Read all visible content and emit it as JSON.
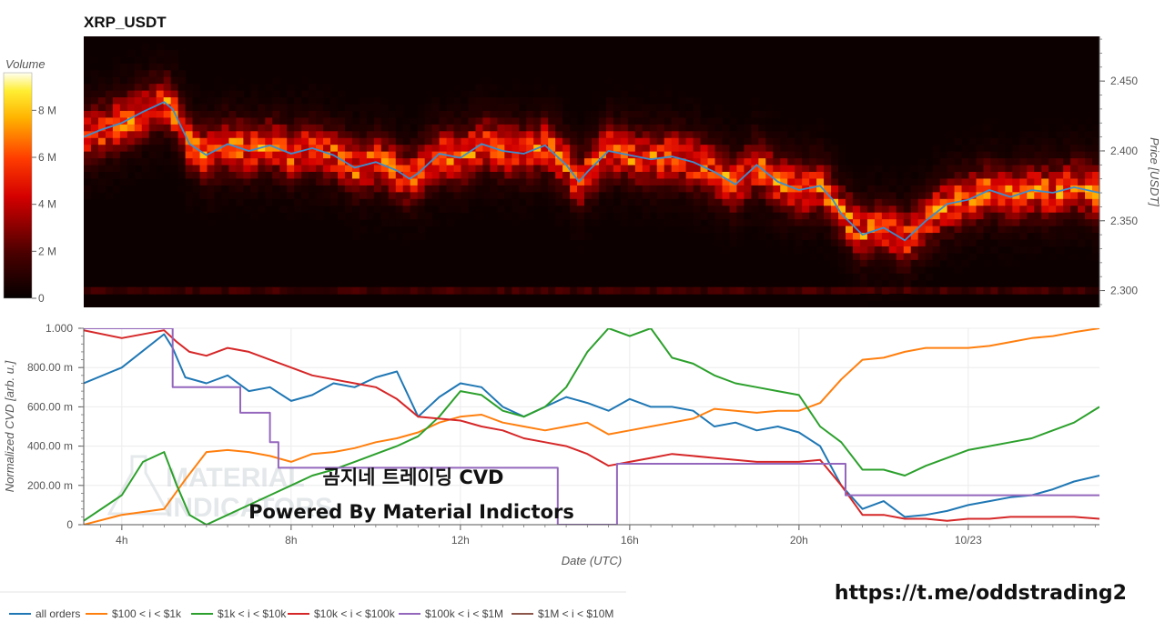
{
  "chart_data": [
    {
      "type": "heatmap",
      "title": "XRP_USDT",
      "ylabel": "Price [USDT]",
      "colorbar_label": "Volume",
      "colorbar_ticks": [
        "0",
        "2 M",
        "4 M",
        "6 M",
        "8 M"
      ],
      "colorbar_values": [
        0,
        2,
        4,
        6,
        8
      ],
      "colorbar_max": 9.6,
      "ylim": [
        2.288,
        2.482
      ],
      "y_ticks": [
        2.3,
        2.35,
        2.4,
        2.45
      ],
      "y_tick_labels": [
        "2.300",
        "2.350",
        "2.400",
        "2.450"
      ],
      "xlim": [
        3.1,
        27.1
      ],
      "price_series": {
        "x": [
          3.1,
          3.5,
          4.0,
          4.5,
          5.0,
          5.2,
          5.6,
          6.0,
          6.5,
          7.0,
          7.5,
          8.0,
          8.5,
          9.0,
          9.5,
          10.0,
          10.5,
          10.8,
          11.0,
          11.5,
          12.0,
          12.5,
          13.0,
          13.5,
          14.0,
          14.5,
          14.8,
          15.0,
          15.5,
          16.0,
          16.5,
          17.0,
          17.5,
          18.0,
          18.5,
          19.0,
          19.5,
          20.0,
          20.5,
          20.8,
          21.0,
          21.5,
          22.0,
          22.5,
          23.0,
          23.5,
          24.0,
          24.5,
          25.0,
          25.5,
          26.0,
          26.5,
          27.1
        ],
        "y": [
          2.41,
          2.415,
          2.42,
          2.428,
          2.435,
          2.43,
          2.405,
          2.397,
          2.405,
          2.4,
          2.404,
          2.398,
          2.402,
          2.397,
          2.388,
          2.392,
          2.386,
          2.38,
          2.384,
          2.398,
          2.395,
          2.405,
          2.4,
          2.398,
          2.404,
          2.39,
          2.378,
          2.385,
          2.4,
          2.397,
          2.394,
          2.396,
          2.392,
          2.385,
          2.376,
          2.39,
          2.378,
          2.372,
          2.375,
          2.365,
          2.355,
          2.34,
          2.345,
          2.336,
          2.35,
          2.362,
          2.365,
          2.372,
          2.367,
          2.372,
          2.37,
          2.374,
          2.37
        ]
      },
      "volume_bands": [
        {
          "center": 2.4,
          "width": 0.012,
          "volume": 6.2
        },
        {
          "center": 2.42,
          "width": 0.01,
          "volume": 5.5
        },
        {
          "center": 2.37,
          "width": 0.01,
          "volume": 3.5
        },
        {
          "center": 2.3,
          "width": 0.004,
          "volume": 2.5
        }
      ]
    },
    {
      "type": "line",
      "ylabel": "Normalized CVD [arb. u.]",
      "xlabel": "Date (UTC)",
      "xlim": [
        3.1,
        27.1
      ],
      "ylim": [
        0,
        1.0
      ],
      "x_ticks": [
        4,
        8,
        12,
        16,
        20,
        24
      ],
      "x_tick_labels": [
        "4h",
        "8h",
        "12h",
        "16h",
        "20h",
        "10/23"
      ],
      "y_ticks": [
        0,
        0.2,
        0.4,
        0.6,
        0.8,
        1.0
      ],
      "y_tick_labels": [
        "0",
        "200.00 m",
        "400.00 m",
        "600.00 m",
        "800.00 m",
        "1.000"
      ],
      "series": [
        {
          "name": "all orders",
          "color": "#1f77b4",
          "x": [
            3.1,
            4.0,
            5.0,
            5.2,
            5.5,
            6.0,
            6.5,
            7.0,
            7.5,
            8.0,
            8.5,
            9.0,
            9.5,
            10.0,
            10.5,
            11.0,
            11.5,
            12.0,
            12.5,
            13.0,
            13.5,
            14.0,
            14.5,
            15.0,
            15.5,
            16.0,
            16.5,
            17.0,
            17.5,
            18.0,
            18.5,
            19.0,
            19.5,
            20.0,
            20.5,
            21.0,
            21.5,
            22.0,
            22.5,
            23.0,
            23.5,
            24.0,
            24.5,
            25.0,
            25.5,
            26.0,
            26.5,
            27.1
          ],
          "y": [
            0.72,
            0.8,
            0.97,
            0.9,
            0.75,
            0.72,
            0.76,
            0.68,
            0.7,
            0.63,
            0.66,
            0.72,
            0.7,
            0.75,
            0.78,
            0.55,
            0.65,
            0.72,
            0.7,
            0.6,
            0.55,
            0.6,
            0.65,
            0.62,
            0.58,
            0.64,
            0.6,
            0.6,
            0.58,
            0.5,
            0.52,
            0.48,
            0.5,
            0.47,
            0.4,
            0.2,
            0.08,
            0.12,
            0.04,
            0.05,
            0.07,
            0.1,
            0.12,
            0.14,
            0.15,
            0.18,
            0.22,
            0.25
          ]
        },
        {
          "name": "$100 < i < $1k",
          "color": "#ff7f0e",
          "x": [
            3.1,
            4.0,
            5.0,
            5.5,
            6.0,
            6.5,
            7.0,
            7.5,
            8.0,
            8.5,
            9.0,
            9.5,
            10.0,
            10.5,
            11.0,
            11.5,
            12.0,
            12.5,
            13.0,
            13.5,
            14.0,
            14.5,
            15.0,
            15.5,
            16.0,
            16.5,
            17.0,
            17.5,
            18.0,
            18.5,
            19.0,
            19.5,
            20.0,
            20.5,
            21.0,
            21.5,
            22.0,
            22.5,
            23.0,
            23.5,
            24.0,
            24.5,
            25.0,
            25.5,
            26.0,
            26.5,
            27.1
          ],
          "y": [
            0.0,
            0.05,
            0.08,
            0.23,
            0.37,
            0.38,
            0.37,
            0.35,
            0.32,
            0.36,
            0.37,
            0.39,
            0.42,
            0.44,
            0.47,
            0.52,
            0.55,
            0.56,
            0.52,
            0.5,
            0.48,
            0.5,
            0.52,
            0.46,
            0.48,
            0.5,
            0.52,
            0.54,
            0.59,
            0.58,
            0.57,
            0.58,
            0.58,
            0.62,
            0.74,
            0.84,
            0.85,
            0.88,
            0.9,
            0.9,
            0.9,
            0.91,
            0.93,
            0.95,
            0.96,
            0.98,
            1.0
          ]
        },
        {
          "name": "$1k < i < $10k",
          "color": "#2ca02c",
          "x": [
            3.1,
            4.0,
            4.5,
            5.0,
            5.3,
            5.6,
            6.0,
            6.5,
            7.0,
            7.5,
            8.0,
            8.5,
            9.0,
            9.5,
            10.0,
            10.5,
            11.0,
            11.5,
            12.0,
            12.5,
            13.0,
            13.5,
            14.0,
            14.5,
            15.0,
            15.5,
            16.0,
            16.5,
            17.0,
            17.5,
            18.0,
            18.5,
            19.0,
            19.5,
            20.0,
            20.5,
            21.0,
            21.5,
            22.0,
            22.5,
            23.0,
            23.5,
            24.0,
            24.5,
            25.0,
            25.5,
            26.0,
            26.5,
            27.1
          ],
          "y": [
            0.02,
            0.15,
            0.32,
            0.37,
            0.2,
            0.05,
            0.0,
            0.05,
            0.1,
            0.15,
            0.2,
            0.25,
            0.28,
            0.32,
            0.36,
            0.4,
            0.45,
            0.55,
            0.68,
            0.66,
            0.58,
            0.55,
            0.6,
            0.7,
            0.88,
            1.0,
            0.96,
            1.0,
            0.85,
            0.82,
            0.76,
            0.72,
            0.7,
            0.68,
            0.66,
            0.5,
            0.42,
            0.28,
            0.28,
            0.25,
            0.3,
            0.34,
            0.38,
            0.4,
            0.42,
            0.44,
            0.48,
            0.52,
            0.6
          ]
        },
        {
          "name": "$10k < i < $100k",
          "color": "#d62728",
          "x": [
            3.1,
            4.0,
            5.0,
            5.3,
            5.6,
            6.0,
            6.5,
            7.0,
            7.5,
            8.0,
            8.5,
            9.0,
            9.5,
            10.0,
            10.5,
            11.0,
            11.5,
            12.0,
            12.5,
            13.0,
            13.5,
            14.0,
            14.5,
            15.0,
            15.5,
            16.0,
            16.5,
            17.0,
            17.5,
            18.0,
            18.5,
            19.0,
            19.5,
            20.0,
            20.5,
            21.0,
            21.5,
            22.0,
            22.5,
            23.0,
            23.5,
            24.0,
            24.5,
            25.0,
            25.5,
            26.0,
            26.5,
            27.1
          ],
          "y": [
            0.99,
            0.95,
            0.99,
            0.93,
            0.88,
            0.86,
            0.9,
            0.88,
            0.84,
            0.8,
            0.76,
            0.74,
            0.72,
            0.7,
            0.64,
            0.55,
            0.54,
            0.53,
            0.5,
            0.48,
            0.44,
            0.42,
            0.4,
            0.36,
            0.3,
            0.32,
            0.34,
            0.36,
            0.35,
            0.34,
            0.33,
            0.32,
            0.32,
            0.32,
            0.33,
            0.2,
            0.05,
            0.05,
            0.03,
            0.03,
            0.02,
            0.03,
            0.03,
            0.04,
            0.04,
            0.04,
            0.04,
            0.03
          ]
        },
        {
          "name": "$100k < i < $1M",
          "color": "#9467bd",
          "step": true,
          "x": [
            3.1,
            5.2,
            5.2,
            6.8,
            6.8,
            7.5,
            7.5,
            7.7,
            7.7,
            14.3,
            14.3,
            15.7,
            15.7,
            21.1,
            21.1,
            27.1
          ],
          "y": [
            1.0,
            1.0,
            0.7,
            0.7,
            0.57,
            0.57,
            0.42,
            0.42,
            0.29,
            0.29,
            0.0,
            0.0,
            0.31,
            0.31,
            0.15,
            0.15
          ]
        },
        {
          "name": "$1M < i < $10M",
          "color": "#8c564b",
          "x": [],
          "y": []
        }
      ]
    }
  ],
  "overlay": {
    "line1": "곰지네 트레이딩 CVD",
    "line2": "Powered By Material Indictors",
    "url": "https://t.me/oddstrading2",
    "watermark_line1": "MATERIAL",
    "watermark_line2": "INDICATORS"
  },
  "colors": {
    "heat_low": "#0a0000",
    "heat_mid": "#d00000",
    "heat_high": "#ffffff",
    "price_line": "#3b8ed0"
  }
}
